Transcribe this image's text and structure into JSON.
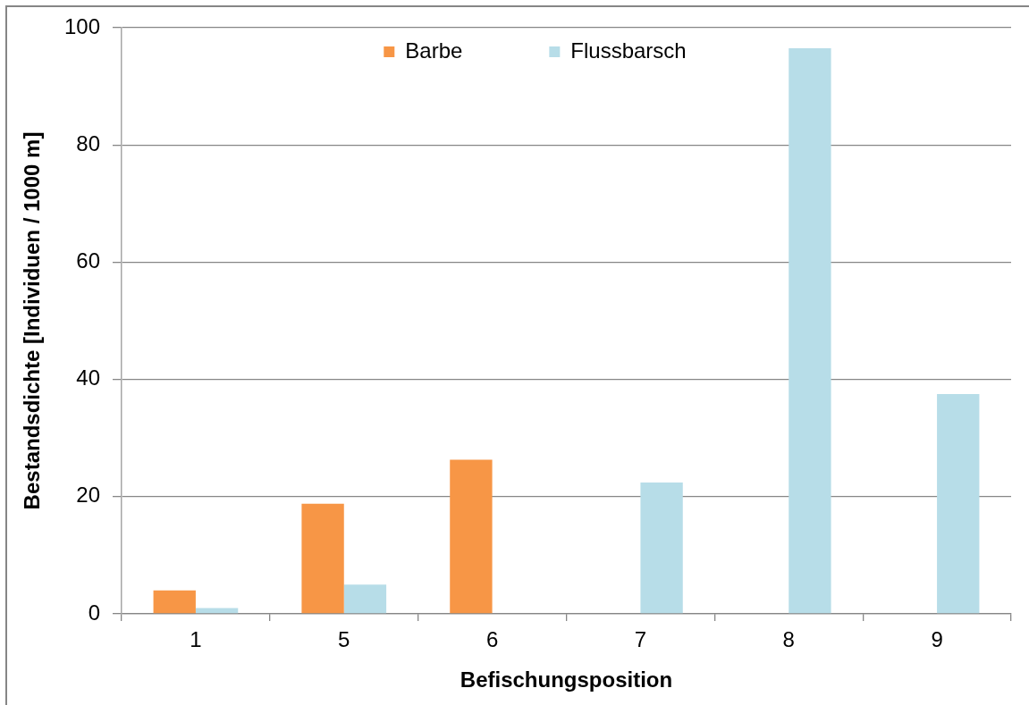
{
  "chart_data": {
    "type": "bar",
    "xlabel": "Befischungsposition",
    "ylabel": "Bestandsdichte [Individuen / 1000 m]",
    "categories": [
      "1",
      "5",
      "6",
      "7",
      "8",
      "9"
    ],
    "series": [
      {
        "name": "Barbe",
        "color": "#f79646",
        "values": [
          4,
          18.8,
          26.3,
          0,
          0,
          0
        ]
      },
      {
        "name": "Flussbarsch",
        "color": "#b7dde8",
        "values": [
          1,
          5,
          0,
          22.4,
          96.5,
          37.5
        ]
      }
    ],
    "ylim": [
      0,
      100
    ],
    "yticks": [
      0,
      20,
      40,
      60,
      80,
      100
    ],
    "grid": "y",
    "legend": "top"
  }
}
